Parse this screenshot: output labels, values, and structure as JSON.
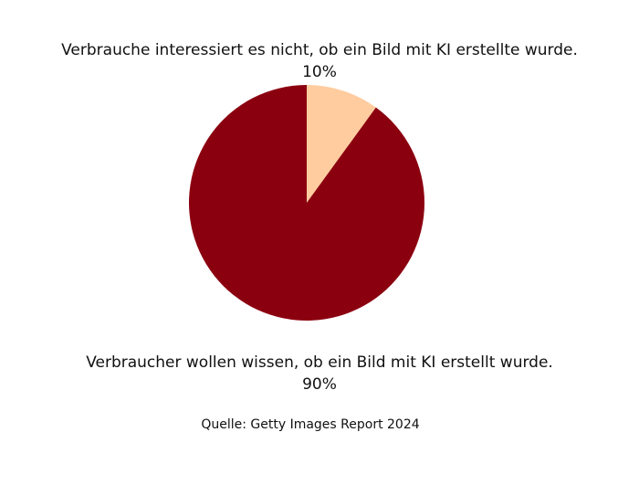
{
  "chart_data": {
    "type": "pie",
    "slices": [
      {
        "label": "Verbrauche interessiert es nicht, ob ein Bild mit KI erstellte wurde.",
        "value": 10,
        "value_label": "10%",
        "color": "#ffcc9f"
      },
      {
        "label": "Verbraucher wollen wissen, ob ein Bild mit KI erstellt wurde.",
        "value": 90,
        "value_label": "90%",
        "color": "#8b000f"
      }
    ],
    "start_angle_deg": 0,
    "direction": "clockwise",
    "legend": "none"
  },
  "source": {
    "text": "Quelle: Getty Images Report 2024"
  }
}
